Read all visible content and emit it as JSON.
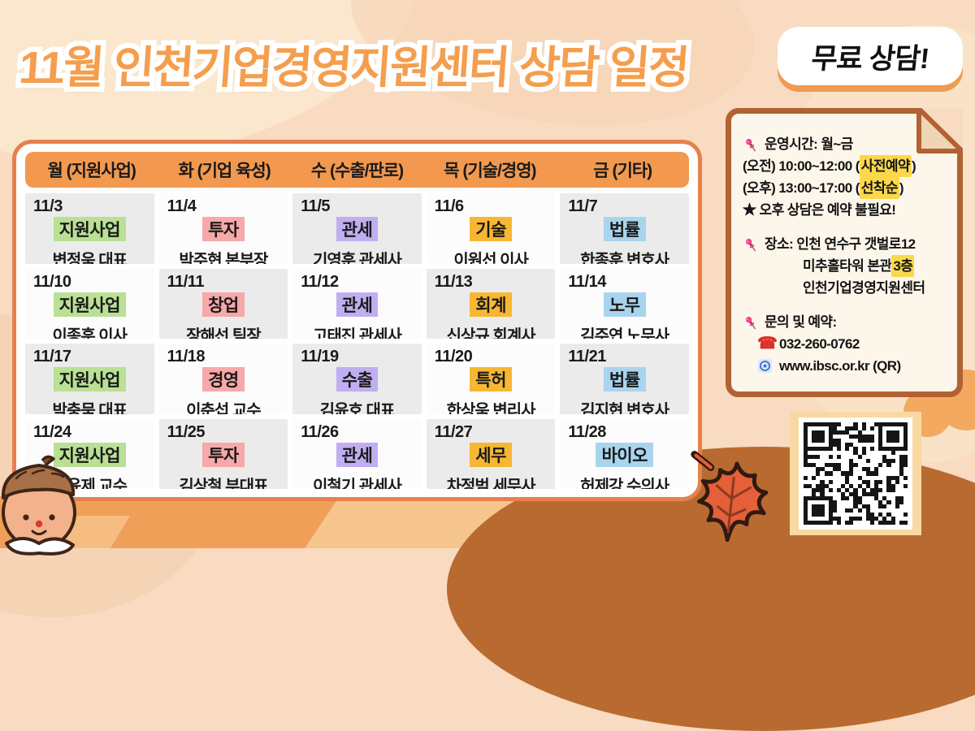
{
  "poster": {
    "title": "11월 인천기업경영지원센터 상담 일정",
    "free_badge": "무료 상담!"
  },
  "calendar": {
    "headers": [
      "월 (지원사업)",
      "화 (기업 육성)",
      "수 (수출/판로)",
      "목 (기술/경영)",
      "금 (기타)"
    ],
    "cells": [
      {
        "date": "11/3",
        "category": "지원사업",
        "color": "green",
        "person": "변정욱 대표"
      },
      {
        "date": "11/4",
        "category": "투자",
        "color": "pink",
        "person": "박주현 본부장"
      },
      {
        "date": "11/5",
        "category": "관세",
        "color": "purple",
        "person": "기영훈 관세사"
      },
      {
        "date": "11/6",
        "category": "기술",
        "color": "amber",
        "person": "이원선 이사"
      },
      {
        "date": "11/7",
        "category": "법률",
        "color": "blue",
        "person": "한종훈 변호사"
      },
      {
        "date": "11/10",
        "category": "지원사업",
        "color": "green",
        "person": "이종훈 이사"
      },
      {
        "date": "11/11",
        "category": "창업",
        "color": "pink",
        "person": "장해선 팀장"
      },
      {
        "date": "11/12",
        "category": "관세",
        "color": "purple",
        "person": "고태진 관세사"
      },
      {
        "date": "11/13",
        "category": "회계",
        "color": "amber",
        "person": "신상규 회계사"
      },
      {
        "date": "11/14",
        "category": "노무",
        "color": "blue",
        "person": "김주연 노무사"
      },
      {
        "date": "11/17",
        "category": "지원사업",
        "color": "green",
        "person": "박충묵 대표"
      },
      {
        "date": "11/18",
        "category": "경영",
        "color": "pink",
        "person": "이춘섭 교수"
      },
      {
        "date": "11/19",
        "category": "수출",
        "color": "purple",
        "person": "김윤호 대표"
      },
      {
        "date": "11/20",
        "category": "특허",
        "color": "amber",
        "person": "한상욱 변리사"
      },
      {
        "date": "11/21",
        "category": "법률",
        "color": "blue",
        "person": "김지현 변호사"
      },
      {
        "date": "11/24",
        "category": "지원사업",
        "color": "green",
        "person": "조윤제 교수"
      },
      {
        "date": "11/25",
        "category": "투자",
        "color": "pink",
        "person": "김상철 부대표"
      },
      {
        "date": "11/26",
        "category": "관세",
        "color": "purple",
        "person": "이철기 관세사"
      },
      {
        "date": "11/27",
        "category": "세무",
        "color": "amber",
        "person": "차정범 세무사"
      },
      {
        "date": "11/28",
        "category": "바이오",
        "color": "blue",
        "person": "허제강 수의사"
      }
    ]
  },
  "info_panel": {
    "lines": [
      {
        "icon": "pushpin-icon",
        "segments": [
          {
            "text": "운영시간: 월~금"
          }
        ]
      },
      {
        "segments": [
          {
            "text": "(오전) 10:00~12:00 ("
          },
          {
            "text": "사전예약",
            "highlight": true
          },
          {
            "text": ")"
          }
        ]
      },
      {
        "segments": [
          {
            "text": "(오후) 13:00~17:00 ("
          },
          {
            "text": "선착순",
            "highlight": true
          },
          {
            "text": ")"
          }
        ]
      },
      {
        "segments": [
          {
            "text": "★ 오후 상담은 예약 불필요!"
          }
        ]
      },
      {
        "spacer": true
      },
      {
        "icon": "pushpin-icon",
        "segments": [
          {
            "text": "장소: 인천 연수구 갯벌로12"
          }
        ]
      },
      {
        "indent": true,
        "segments": [
          {
            "text": "미추홀타워 본관 "
          },
          {
            "text": "3층",
            "highlight": true
          }
        ]
      },
      {
        "indent": true,
        "segments": [
          {
            "text": "인천기업경영지원센터"
          }
        ]
      },
      {
        "spacer": true
      },
      {
        "icon": "pushpin-icon",
        "segments": [
          {
            "text": "문의 및 예약:"
          }
        ]
      },
      {
        "icon": "phone-icon",
        "sub": true,
        "segments": [
          {
            "text": "032-260-0762"
          }
        ]
      },
      {
        "icon": "globe-icon",
        "sub": true,
        "segments": [
          {
            "text": "www.ibsc.or.kr (QR)"
          }
        ]
      }
    ]
  },
  "colors": {
    "title_orange": "#f59e4e",
    "header_orange": "#f2994f",
    "card_border": "#e5814d",
    "note_border": "#b26232",
    "highlight_yellow": "#fbd84a",
    "cell_gray": "#ebebeb",
    "cell_white": "#fcfcfc",
    "category": {
      "green": "#b9e094",
      "pink": "#f7a8a8",
      "purple": "#c0aef1",
      "amber": "#f7b733",
      "blue": "#a9d4ee"
    }
  }
}
